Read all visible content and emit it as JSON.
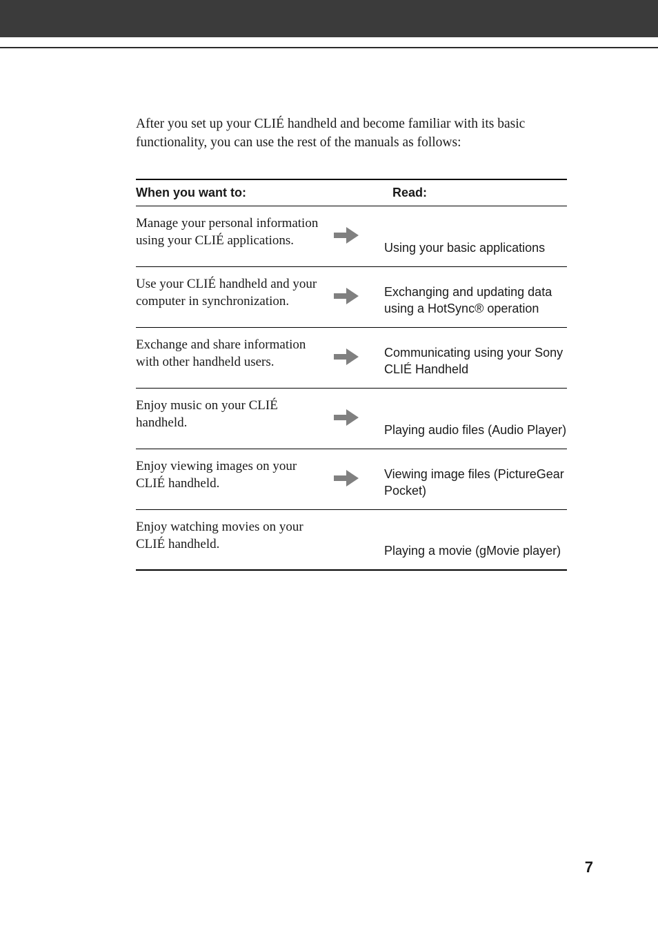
{
  "intro_text": "After you set up your CLIÉ handheld and become familiar with its basic functionality, you can use the rest of the manuals as follows:",
  "table": {
    "header_left": "When you want to:",
    "header_right": "Read:",
    "rows": [
      {
        "left": "Manage your personal information using your CLIÉ applications.",
        "right": "Using your basic applications",
        "has_arrow": true
      },
      {
        "left": "Use your CLIÉ handheld and your computer in synchronization.",
        "right": "Exchanging and updating data using a HotSync® operation",
        "has_arrow": true
      },
      {
        "left": "Exchange and share information with  other handheld users.",
        "right": "Communicating using your Sony CLIÉ Handheld",
        "has_arrow": true
      },
      {
        "left": "Enjoy music on  your CLIÉ handheld.",
        "right": "Playing audio files (Audio Player)",
        "has_arrow": true
      },
      {
        "left": "Enjoy viewing images on your CLIÉ handheld.",
        "right": "Viewing image files (PictureGear Pocket)",
        "has_arrow": true
      },
      {
        "left": "Enjoy watching movies on  your CLIÉ handheld.",
        "right": "Playing a movie (gMovie player)",
        "has_arrow": false
      }
    ]
  },
  "page_number": "7",
  "arrow_color": "#808080"
}
